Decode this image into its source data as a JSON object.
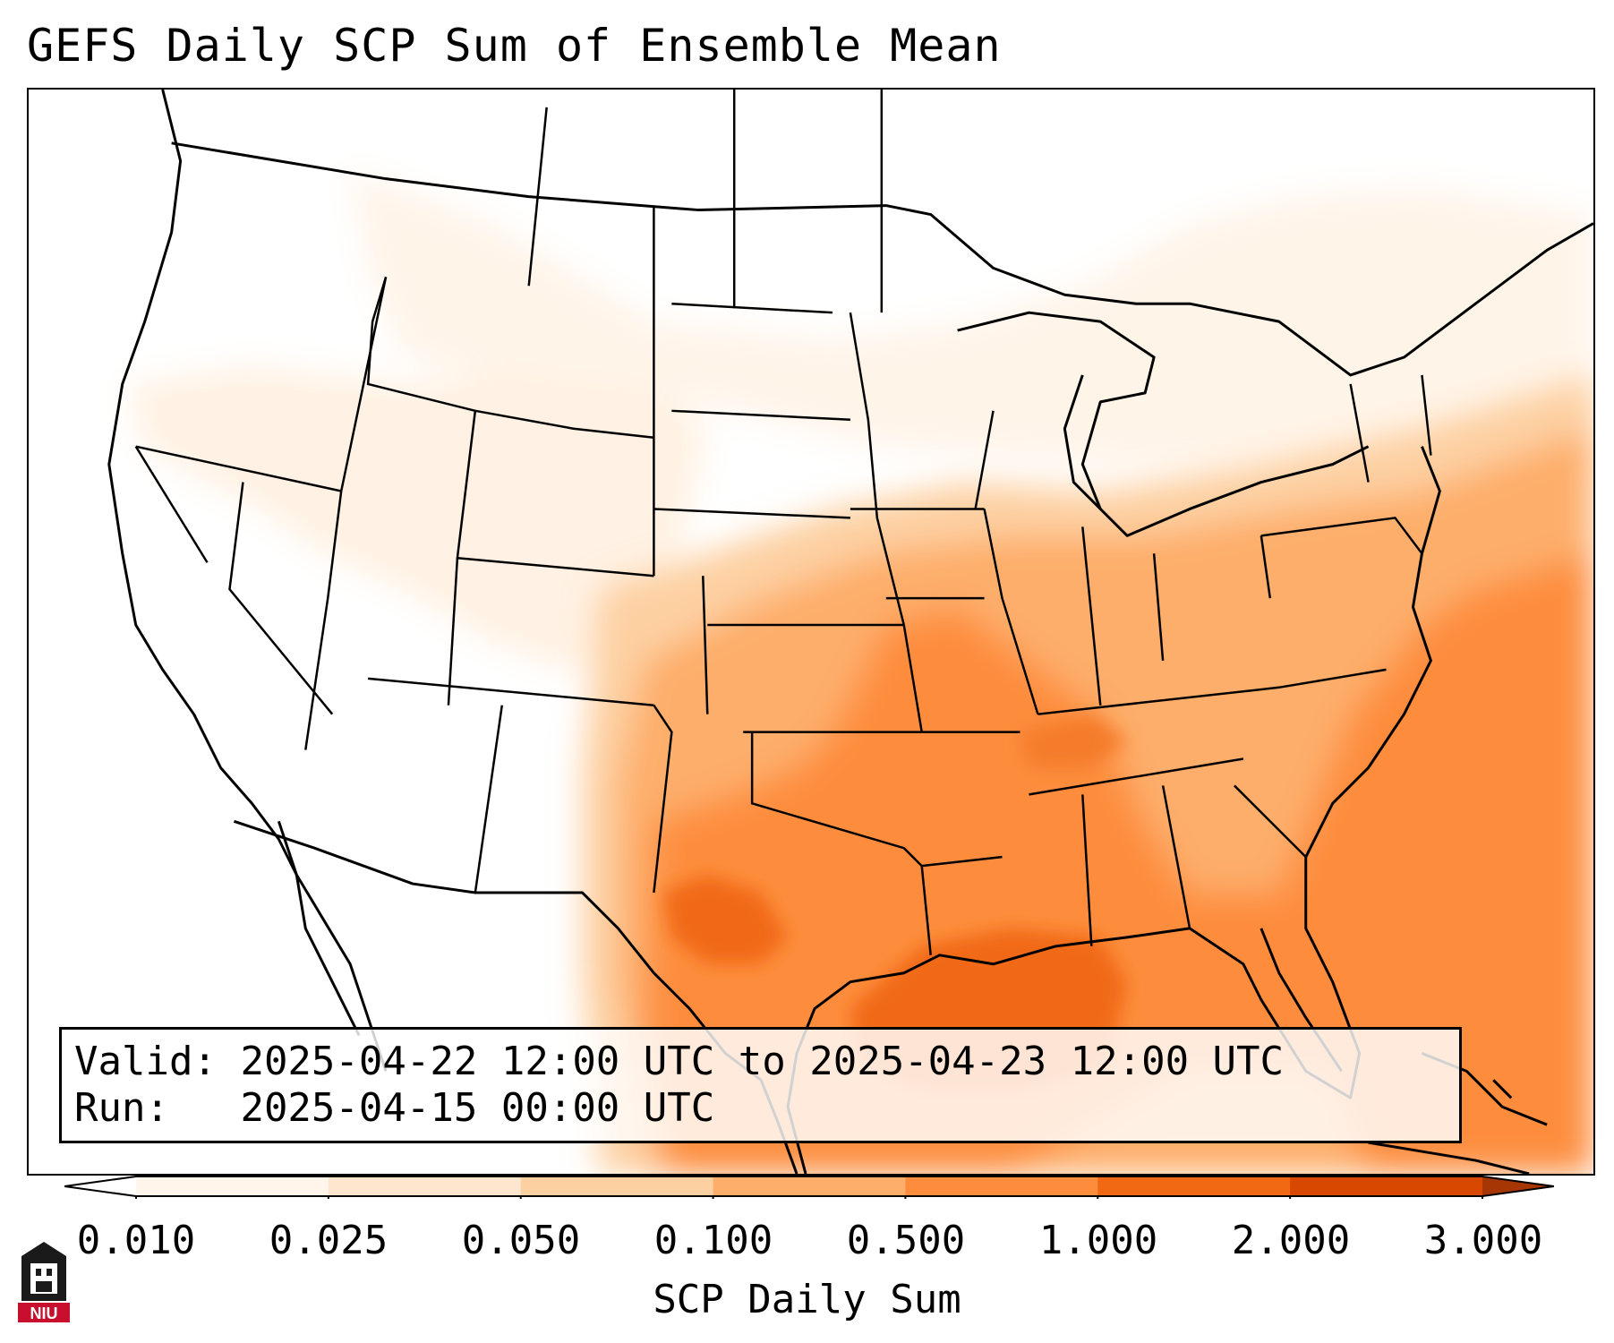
{
  "title": "GEFS Daily SCP Sum of Ensemble Mean",
  "info": {
    "valid_label": "Valid:",
    "valid_value": "2025-04-22 12:00 UTC to 2025-04-23 12:00 UTC",
    "run_label": "Run:",
    "run_value": "2025-04-15 00:00 UTC"
  },
  "colorbar": {
    "label": "SCP Daily Sum",
    "ticks": [
      "0.010",
      "0.025",
      "0.050",
      "0.100",
      "0.500",
      "1.000",
      "2.000",
      "3.000"
    ],
    "colors": [
      "#fff5eb",
      "#fee6ce",
      "#fdd0a2",
      "#fdae6b",
      "#fd8d3c",
      "#f16913",
      "#d94801",
      "#a63603"
    ],
    "extend": "both"
  },
  "logo": {
    "text": "NIU",
    "color": "#c8102e"
  },
  "map": {
    "projection": "Lambert conformal (CONUS)",
    "borders": [
      "coastlines",
      "country borders",
      "US state borders"
    ],
    "field": "SCP daily sum of GEFS ensemble mean"
  }
}
